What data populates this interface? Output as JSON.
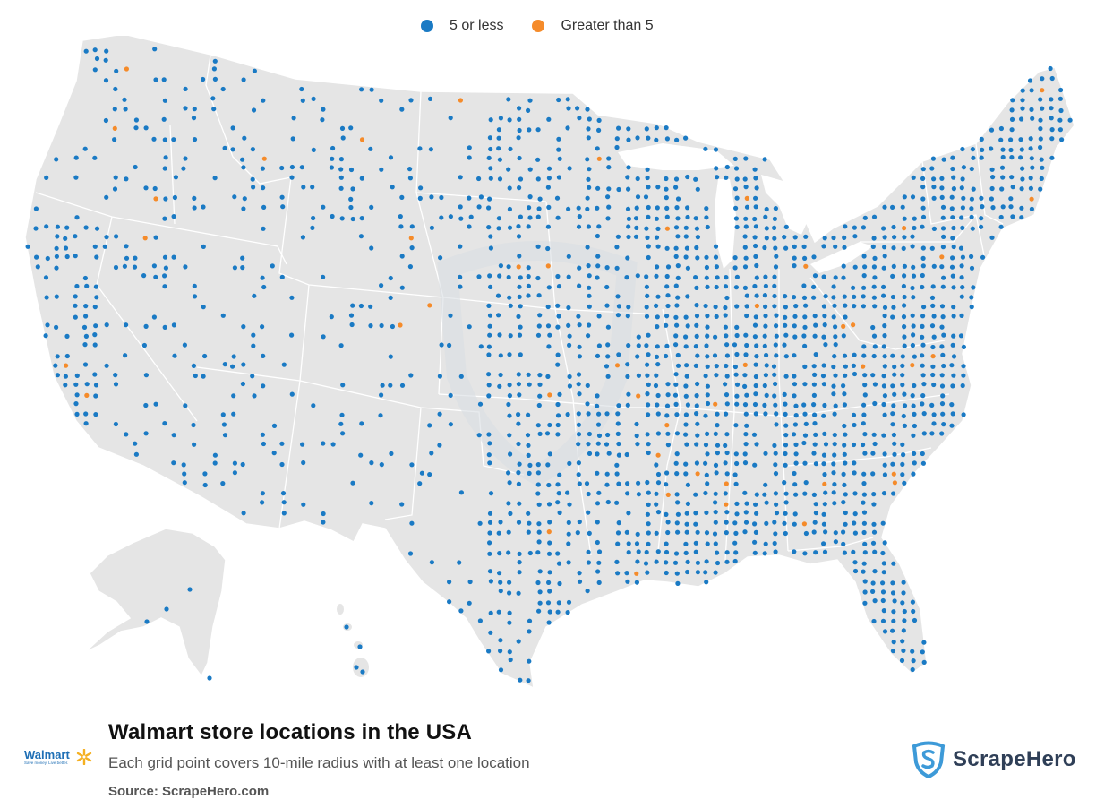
{
  "legend": {
    "items": [
      {
        "label": "5 or less",
        "color": "#1a7ac4"
      },
      {
        "label": "Greater than 5",
        "color": "#f58b2a"
      }
    ]
  },
  "footer": {
    "title": "Walmart store locations in the USA",
    "subtitle": "Each grid point covers 10-mile radius with at least one location",
    "source": "Source: ScrapeHero.com"
  },
  "logos": {
    "walmart_text": "Walmart",
    "walmart_tagline": "Save money. Live better.",
    "scrapehero_text": "ScrapeHero"
  },
  "map": {
    "land_color": "#e5e5e5",
    "border_color": "#ffffff",
    "regions": [
      "contiguous-us",
      "alaska",
      "hawaii"
    ]
  }
}
